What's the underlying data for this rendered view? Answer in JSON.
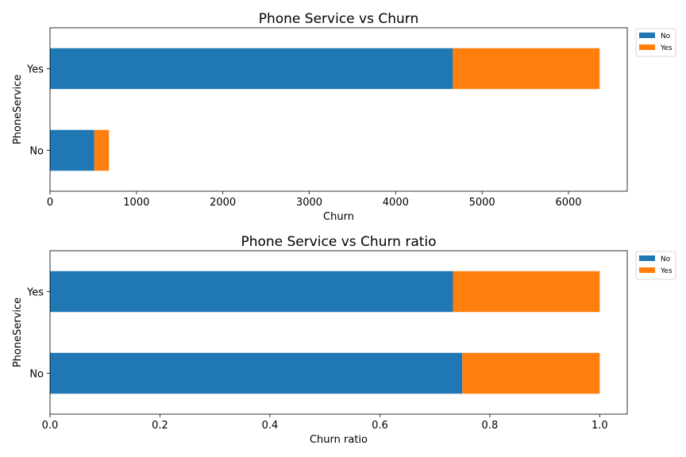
{
  "chart_data": [
    {
      "type": "bar",
      "orientation": "horizontal",
      "stacked": true,
      "title": "Phone Service vs Churn",
      "xlabel": "Churn",
      "ylabel": "PhoneService",
      "categories": [
        "No",
        "Yes"
      ],
      "series": [
        {
          "name": "No",
          "values": [
            512,
            4662
          ],
          "color": "#1f77b4"
        },
        {
          "name": "Yes",
          "values": [
            170,
            1699
          ],
          "color": "#ff7f0e"
        }
      ],
      "xlim": [
        0,
        6680
      ],
      "xticks": [
        0,
        1000,
        2000,
        3000,
        4000,
        5000,
        6000
      ],
      "xtick_labels": [
        "0",
        "1000",
        "2000",
        "3000",
        "4000",
        "5000",
        "6000"
      ],
      "grid": false,
      "legend_position": "outside upper right"
    },
    {
      "type": "bar",
      "orientation": "horizontal",
      "stacked": true,
      "title": "Phone Service vs Churn ratio",
      "xlabel": "Churn ratio",
      "ylabel": "PhoneService",
      "categories": [
        "No",
        "Yes"
      ],
      "series": [
        {
          "name": "No",
          "values": [
            0.75,
            0.733
          ],
          "color": "#1f77b4"
        },
        {
          "name": "Yes",
          "values": [
            0.25,
            0.267
          ],
          "color": "#ff7f0e"
        }
      ],
      "xlim": [
        0,
        1.05
      ],
      "xticks": [
        0,
        0.2,
        0.4,
        0.6,
        0.8,
        1.0
      ],
      "xtick_labels": [
        "0.0",
        "0.2",
        "0.4",
        "0.6",
        "0.8",
        "1.0"
      ],
      "grid": false,
      "legend_position": "outside upper right"
    }
  ]
}
